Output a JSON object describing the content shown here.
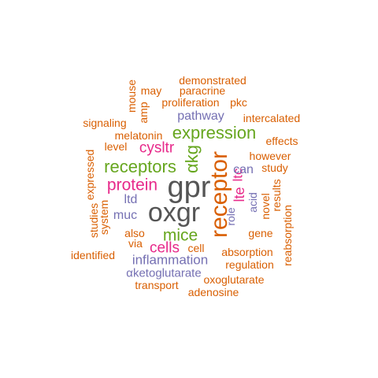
{
  "palette": {
    "orange": "#d95f02",
    "green": "#66a61e",
    "magenta": "#e7298a",
    "purple": "#7570b3",
    "gray": "#555555"
  },
  "words": [
    {
      "id": "gpr",
      "text": "gpr",
      "color": "gray"
    },
    {
      "id": "oxgr",
      "text": "oxgr",
      "color": "gray"
    },
    {
      "id": "receptor",
      "text": "receptor",
      "color": "orange"
    },
    {
      "id": "expression",
      "text": "expression",
      "color": "green"
    },
    {
      "id": "receptors",
      "text": "receptors",
      "color": "green"
    },
    {
      "id": "mice",
      "text": "mice",
      "color": "green"
    },
    {
      "id": "akg",
      "text": "αkg",
      "color": "green"
    },
    {
      "id": "protein",
      "text": "protein",
      "color": "magenta"
    },
    {
      "id": "cells",
      "text": "cells",
      "color": "magenta"
    },
    {
      "id": "cysltr",
      "text": "cysltr",
      "color": "magenta"
    },
    {
      "id": "lte",
      "text": "lte",
      "color": "magenta"
    },
    {
      "id": "ltc",
      "text": "ltc",
      "color": "magenta"
    },
    {
      "id": "pathway",
      "text": "pathway",
      "color": "purple"
    },
    {
      "id": "inflammation",
      "text": "inflammation",
      "color": "purple"
    },
    {
      "id": "ltd",
      "text": "ltd",
      "color": "purple"
    },
    {
      "id": "muc",
      "text": "muc",
      "color": "purple"
    },
    {
      "id": "can",
      "text": "can",
      "color": "purple"
    },
    {
      "id": "role",
      "text": "role",
      "color": "purple"
    },
    {
      "id": "acid",
      "text": "acid",
      "color": "purple"
    },
    {
      "id": "aketoglutarate",
      "text": "αketoglutarate",
      "color": "purple"
    },
    {
      "id": "demonstrated",
      "text": "demonstrated",
      "color": "orange"
    },
    {
      "id": "may",
      "text": "may",
      "color": "orange"
    },
    {
      "id": "paracrine",
      "text": "paracrine",
      "color": "orange"
    },
    {
      "id": "mouse",
      "text": "mouse",
      "color": "orange"
    },
    {
      "id": "amp",
      "text": "amp",
      "color": "orange"
    },
    {
      "id": "proliferation",
      "text": "proliferation",
      "color": "orange"
    },
    {
      "id": "pkc",
      "text": "pkc",
      "color": "orange"
    },
    {
      "id": "signaling",
      "text": "signaling",
      "color": "orange"
    },
    {
      "id": "intercalated",
      "text": "intercalated",
      "color": "orange"
    },
    {
      "id": "melatonin",
      "text": "melatonin",
      "color": "orange"
    },
    {
      "id": "effects",
      "text": "effects",
      "color": "orange"
    },
    {
      "id": "level",
      "text": "level",
      "color": "orange"
    },
    {
      "id": "however",
      "text": "however",
      "color": "orange"
    },
    {
      "id": "expressed",
      "text": "expressed",
      "color": "orange"
    },
    {
      "id": "study",
      "text": "study",
      "color": "orange"
    },
    {
      "id": "results",
      "text": "results",
      "color": "orange"
    },
    {
      "id": "novel",
      "text": "novel",
      "color": "orange"
    },
    {
      "id": "system",
      "text": "system",
      "color": "orange"
    },
    {
      "id": "studies",
      "text": "studies",
      "color": "orange"
    },
    {
      "id": "also",
      "text": "also",
      "color": "orange"
    },
    {
      "id": "gene",
      "text": "gene",
      "color": "orange"
    },
    {
      "id": "reabsorption",
      "text": "reabsorption",
      "color": "orange"
    },
    {
      "id": "via",
      "text": "via",
      "color": "orange"
    },
    {
      "id": "cell",
      "text": "cell",
      "color": "orange"
    },
    {
      "id": "absorption",
      "text": "absorption",
      "color": "orange"
    },
    {
      "id": "identified",
      "text": "identified",
      "color": "orange"
    },
    {
      "id": "regulation",
      "text": "regulation",
      "color": "orange"
    },
    {
      "id": "oxoglutarate",
      "text": "oxoglutarate",
      "color": "orange"
    },
    {
      "id": "transport",
      "text": "transport",
      "color": "orange"
    },
    {
      "id": "adenosine",
      "text": "adenosine",
      "color": "orange"
    }
  ]
}
